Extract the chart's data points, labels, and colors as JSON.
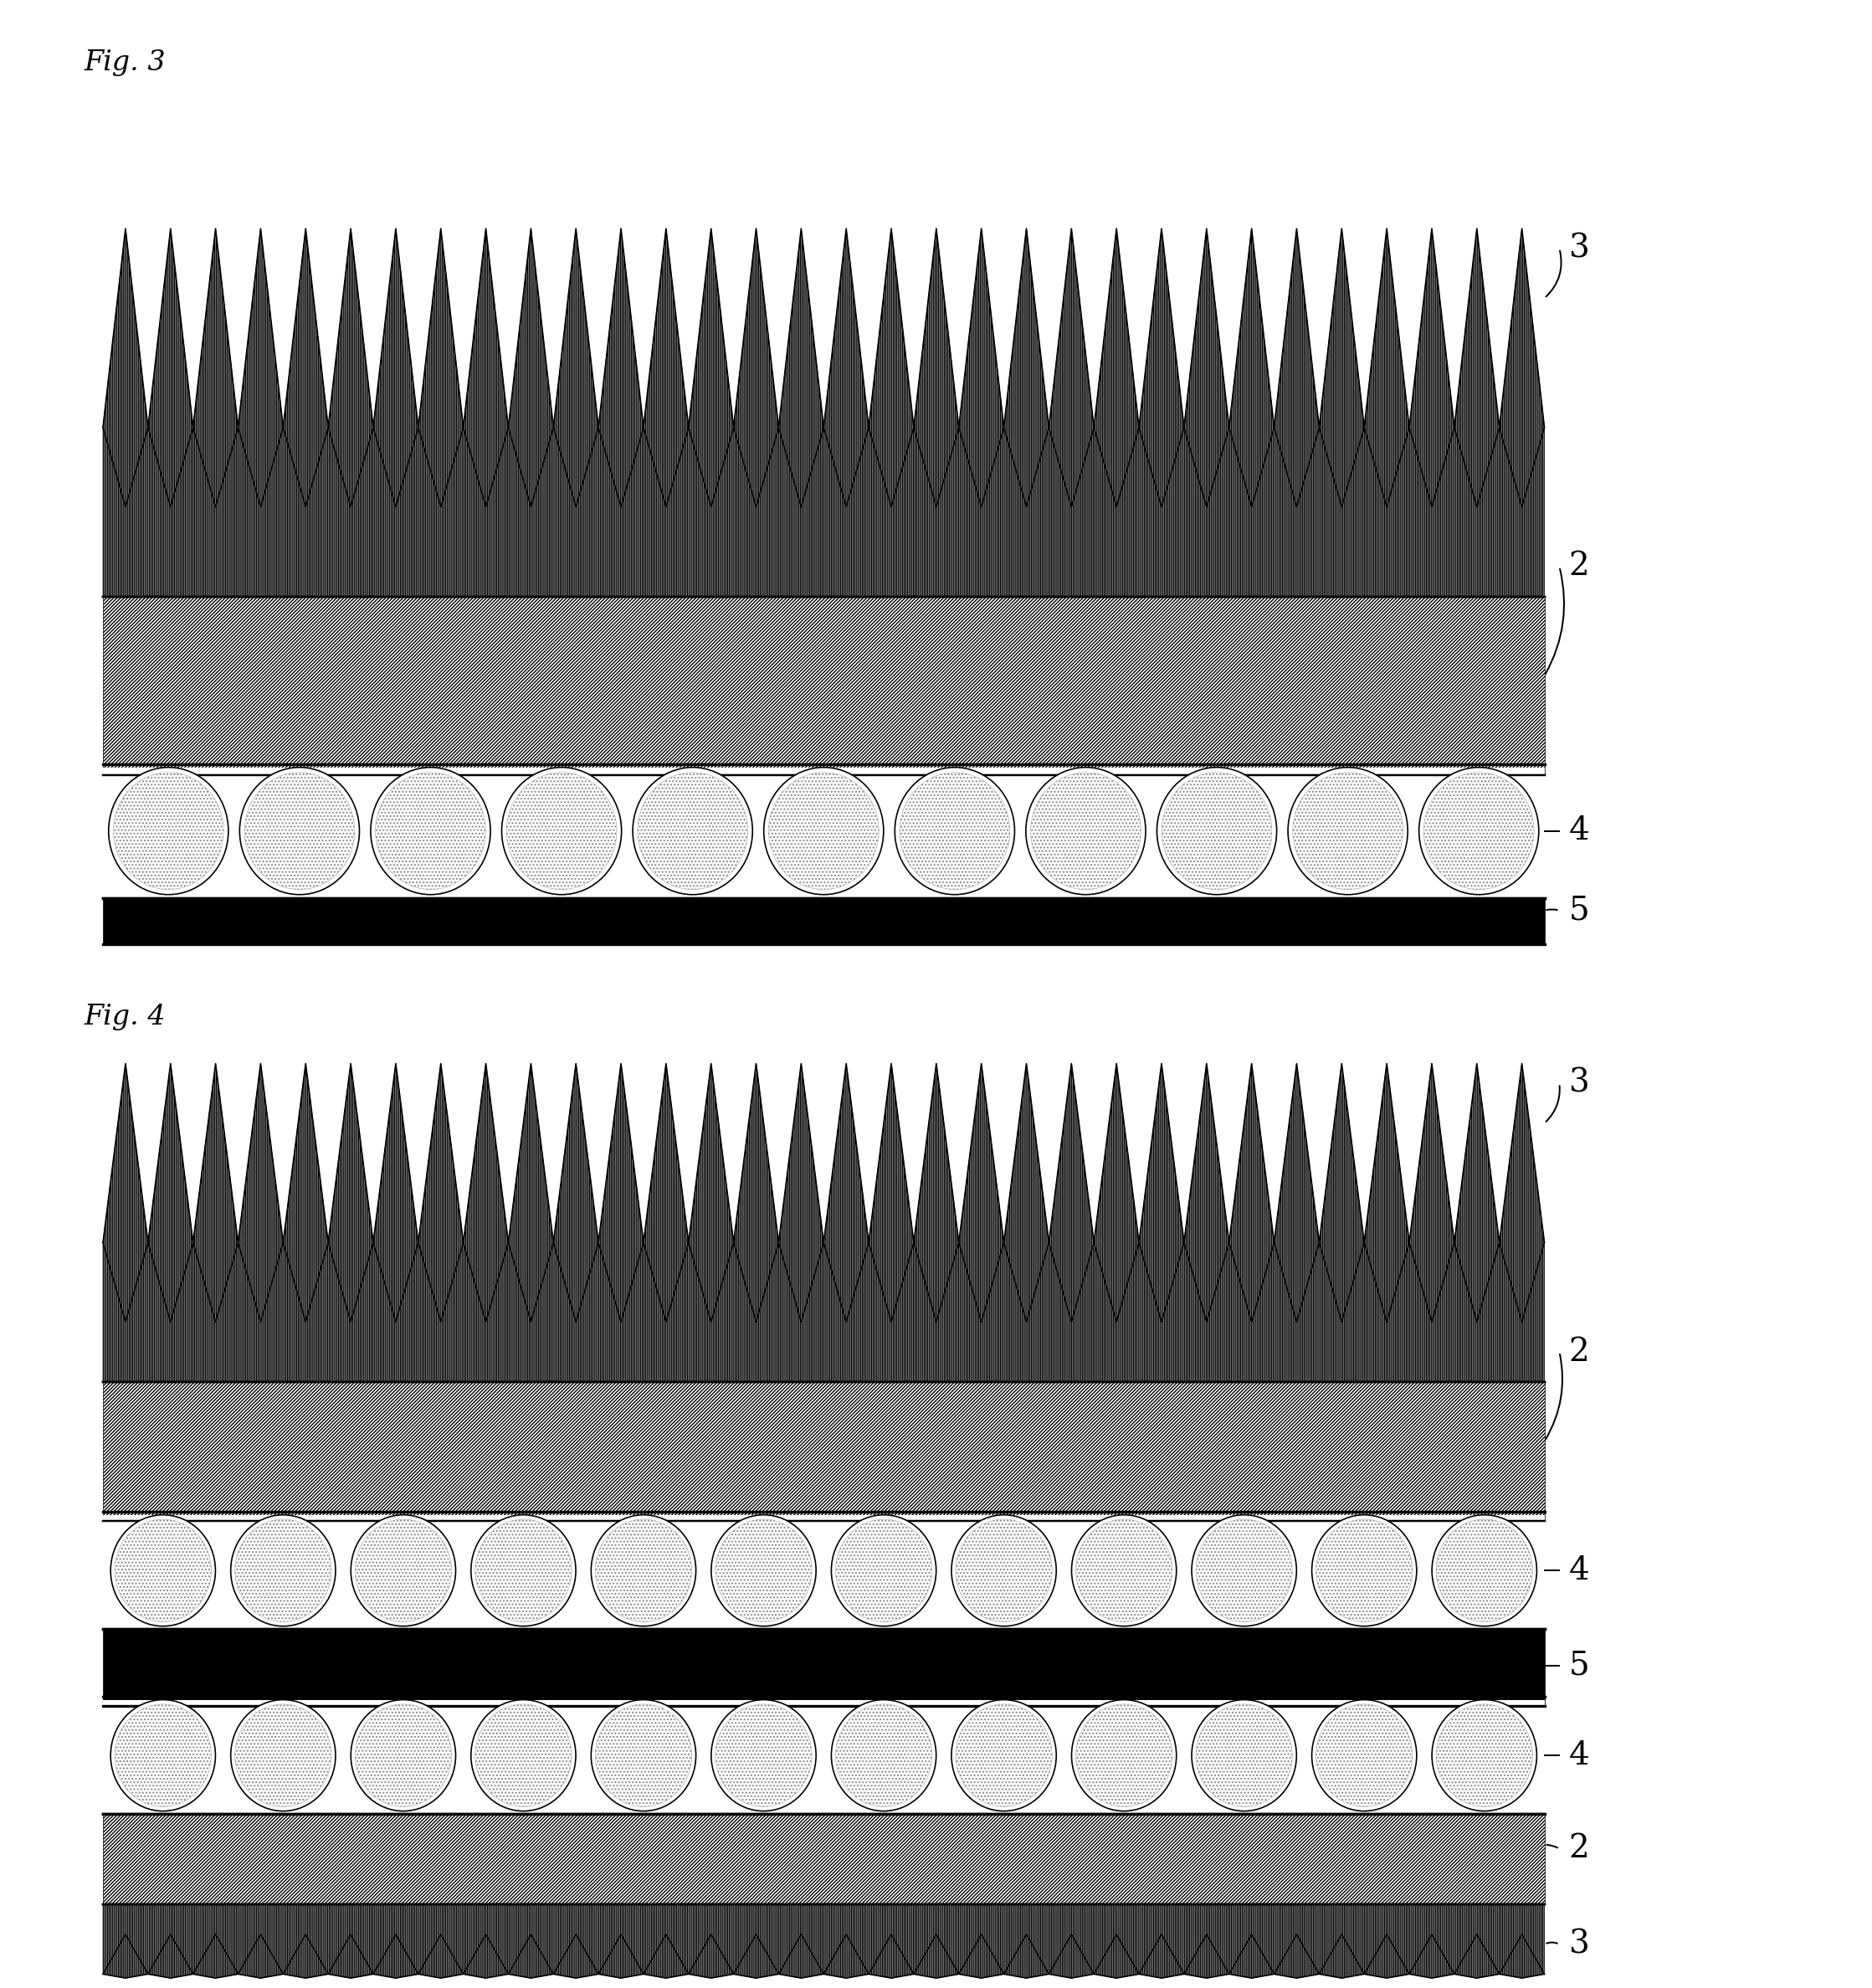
{
  "fig3_title": "Fig. 3",
  "fig4_title": "Fig. 4",
  "bg_color": "#ffffff",
  "line_color": "#000000",
  "label_fontsize": 28,
  "title_fontsize": 24,
  "lw": 1.2,
  "n_peaks": 32
}
